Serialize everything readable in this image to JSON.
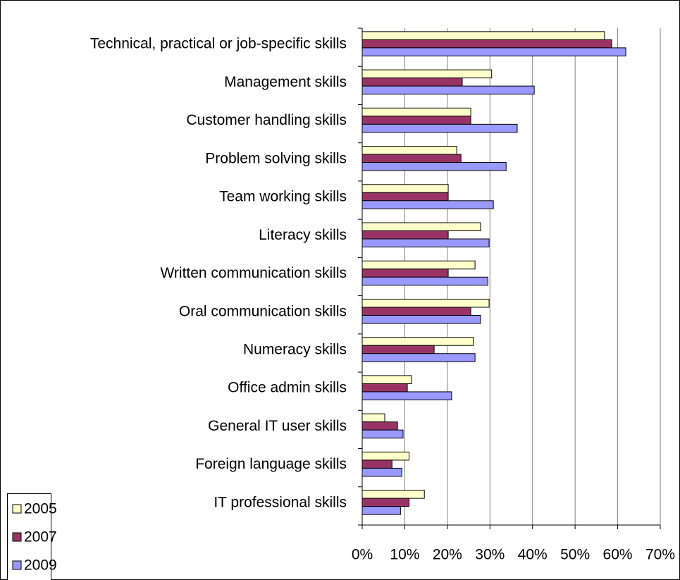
{
  "chart_data": {
    "type": "hbar",
    "categories": [
      "Technical, practical or job-specific skills",
      "Management skills",
      "Customer handling skills",
      "Problem solving skills",
      "Team working skills",
      "Literacy skills",
      "Written communication skills",
      "Oral communication skills",
      "Numeracy skills",
      "Office admin skills",
      "General IT user skills",
      "Foreign language skills",
      "IT professional skills"
    ],
    "series": [
      {
        "name": "2005",
        "color": "#ffffcc",
        "values": [
          56.9,
          30.4,
          25.5,
          22.2,
          20.2,
          27.8,
          26.5,
          29.8,
          26.1,
          11.6,
          5.3,
          11,
          14.6
        ]
      },
      {
        "name": "2007",
        "color": "#993366",
        "values": [
          58.6,
          23.5,
          25.5,
          23.2,
          20.2,
          20.2,
          20.2,
          25.5,
          16.9,
          10.6,
          8.3,
          7,
          11
        ]
      },
      {
        "name": "2009",
        "color": "#9999ff",
        "values": [
          61.9,
          40.4,
          36.4,
          33.8,
          30.8,
          29.8,
          29.5,
          27.8,
          26.5,
          21,
          9.6,
          9.3,
          9
        ]
      }
    ],
    "xlim": [
      0,
      70
    ],
    "xticks": [
      {
        "value": 0,
        "label": "0%"
      },
      {
        "value": 10,
        "label": "10%"
      },
      {
        "value": 20,
        "label": "20%"
      },
      {
        "value": 30,
        "label": "30%"
      },
      {
        "value": 40,
        "label": "40%"
      },
      {
        "value": 50,
        "label": "50%"
      },
      {
        "value": 60,
        "label": "60%"
      },
      {
        "value": 70,
        "label": "70%"
      }
    ],
    "grid": true,
    "legend": "bottom-left"
  }
}
